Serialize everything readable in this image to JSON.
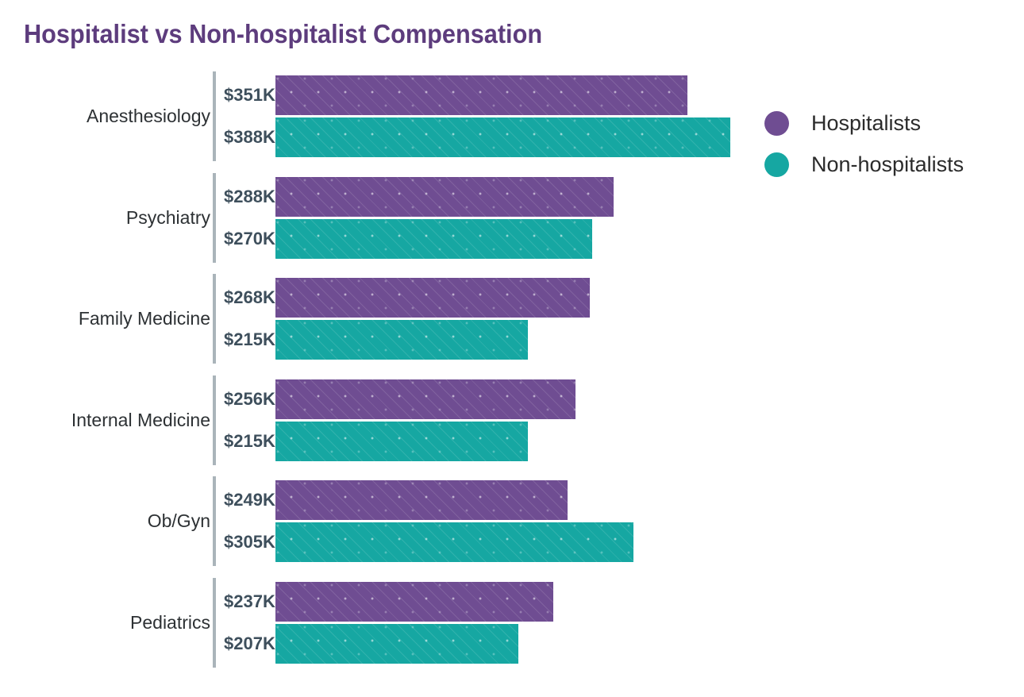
{
  "title": "Hospitalist vs Non-hospitalist Compensation",
  "colors": {
    "title_text": "#5d3c7d",
    "hospitalists_bar": "#6f4d92",
    "non_hospitalists_bar": "#16a7a2",
    "value_label_text": "#3e4f5c",
    "category_label_text": "#2d3134",
    "axis_tick_line": "#aab4ba",
    "legend_text": "#2b2b2b",
    "background": "#ffffff"
  },
  "legend": {
    "items": [
      {
        "label": "Hospitalists",
        "color": "#6f4d92"
      },
      {
        "label": "Non-hospitalists",
        "color": "#16a7a2"
      }
    ]
  },
  "chart_data": {
    "type": "bar",
    "orientation": "horizontal",
    "title": "Hospitalist vs Non-hospitalist Compensation",
    "categories": [
      "Anesthesiology",
      "Psychiatry",
      "Family Medicine",
      "Internal Medicine",
      "Ob/Gyn",
      "Pediatrics"
    ],
    "series": [
      {
        "name": "Hospitalists",
        "color": "#6f4d92",
        "values": [
          351,
          288,
          268,
          256,
          249,
          237
        ],
        "labels": [
          "$351K",
          "$288K",
          "$268K",
          "$256K",
          "$249K",
          "$237K"
        ]
      },
      {
        "name": "Non-hospitalists",
        "color": "#16a7a2",
        "values": [
          388,
          270,
          215,
          215,
          305,
          207
        ],
        "labels": [
          "$388K",
          "$270K",
          "$215K",
          "$215K",
          "$305K",
          "$207K"
        ]
      }
    ],
    "value_unit": "USD thousands per year",
    "xlim": [
      0,
      400
    ],
    "grid": false,
    "legend_position": "right",
    "value_labels_position": "left-of-bar"
  }
}
